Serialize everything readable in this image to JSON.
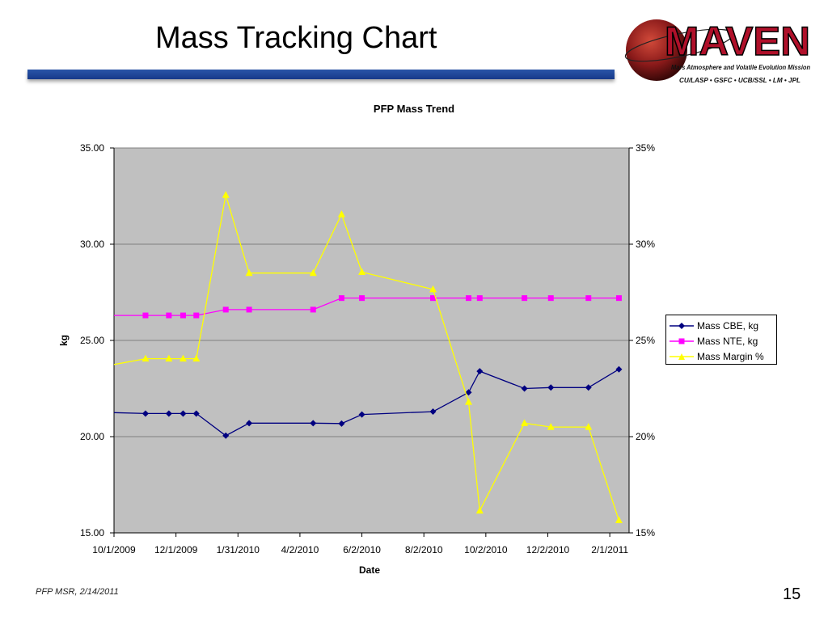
{
  "slide": {
    "title": "Mass Tracking Chart",
    "footer": "PFP MSR, 2/14/2011",
    "page_number": "15"
  },
  "logo": {
    "wordmark": "MAVEN",
    "subtitle": "Mars Atmosphere and Volatile Evolution Mission",
    "partners": "CU/LASP • GSFC • UCB/SSL • LM • JPL",
    "colors": {
      "wordmark": "#b0102a",
      "planet": "#8a1a1a",
      "text": "#111111"
    }
  },
  "chart_data": {
    "type": "line",
    "title": "PFP Mass Trend",
    "xlabel": "Date",
    "ylabel": "kg",
    "y2label": "",
    "x_ticks": [
      "10/1/2009",
      "12/1/2009",
      "1/31/2010",
      "4/2/2010",
      "6/2/2010",
      "8/2/2010",
      "10/2/2010",
      "12/2/2010",
      "2/1/2011"
    ],
    "y_ticks": [
      "15.00",
      "20.00",
      "25.00",
      "30.00",
      "35.00"
    ],
    "y2_ticks": [
      "15%",
      "20%",
      "25%",
      "30%",
      "35%"
    ],
    "xlim": [
      "2009-10-01",
      "2011-02-20"
    ],
    "ylim": [
      15,
      35
    ],
    "y2lim": [
      15,
      35
    ],
    "grid": true,
    "legend_position": "right",
    "plot_background": "#c0c0c0",
    "series": [
      {
        "name": "Mass CBE, kg",
        "axis": "left",
        "color": "#000080",
        "marker": "diamond",
        "points": [
          [
            "2009-10-01",
            21.25
          ],
          [
            "2009-11-01",
            21.2
          ],
          [
            "2009-11-24",
            21.2
          ],
          [
            "2009-12-08",
            21.2
          ],
          [
            "2009-12-21",
            21.2
          ],
          [
            "2010-01-19",
            20.05
          ],
          [
            "2010-02-11",
            20.7
          ],
          [
            "2010-04-15",
            20.7
          ],
          [
            "2010-05-13",
            20.68
          ],
          [
            "2010-06-02",
            21.15
          ],
          [
            "2010-08-11",
            21.3
          ],
          [
            "2010-09-15",
            22.3
          ],
          [
            "2010-09-26",
            23.4
          ],
          [
            "2010-11-09",
            22.5
          ],
          [
            "2010-12-05",
            22.55
          ],
          [
            "2011-01-11",
            22.55
          ],
          [
            "2011-02-10",
            23.5
          ]
        ]
      },
      {
        "name": "Mass NTE, kg",
        "axis": "left",
        "color": "#ff00ff",
        "marker": "square",
        "points": [
          [
            "2009-10-01",
            26.3
          ],
          [
            "2009-11-01",
            26.3
          ],
          [
            "2009-11-24",
            26.3
          ],
          [
            "2009-12-08",
            26.3
          ],
          [
            "2009-12-21",
            26.3
          ],
          [
            "2010-01-19",
            26.6
          ],
          [
            "2010-02-11",
            26.6
          ],
          [
            "2010-04-15",
            26.6
          ],
          [
            "2010-05-13",
            27.2
          ],
          [
            "2010-06-02",
            27.2
          ],
          [
            "2010-08-11",
            27.2
          ],
          [
            "2010-09-15",
            27.2
          ],
          [
            "2010-09-26",
            27.2
          ],
          [
            "2010-11-09",
            27.2
          ],
          [
            "2010-12-05",
            27.2
          ],
          [
            "2011-01-11",
            27.2
          ],
          [
            "2011-02-10",
            27.2
          ]
        ]
      },
      {
        "name": "Mass Margin %",
        "axis": "right",
        "color": "#ffff00",
        "marker": "triangle",
        "points": [
          [
            "2009-10-01",
            23.75
          ],
          [
            "2009-11-01",
            24.05
          ],
          [
            "2009-11-24",
            24.05
          ],
          [
            "2009-12-08",
            24.05
          ],
          [
            "2009-12-21",
            24.05
          ],
          [
            "2010-01-19",
            32.55
          ],
          [
            "2010-02-11",
            28.5
          ],
          [
            "2010-04-15",
            28.5
          ],
          [
            "2010-05-13",
            31.55
          ],
          [
            "2010-06-02",
            28.55
          ],
          [
            "2010-08-11",
            27.65
          ],
          [
            "2010-09-15",
            21.8
          ],
          [
            "2010-09-26",
            16.15
          ],
          [
            "2010-11-09",
            20.7
          ],
          [
            "2010-12-05",
            20.5
          ],
          [
            "2011-01-11",
            20.5
          ],
          [
            "2011-02-10",
            15.65
          ]
        ]
      }
    ]
  }
}
